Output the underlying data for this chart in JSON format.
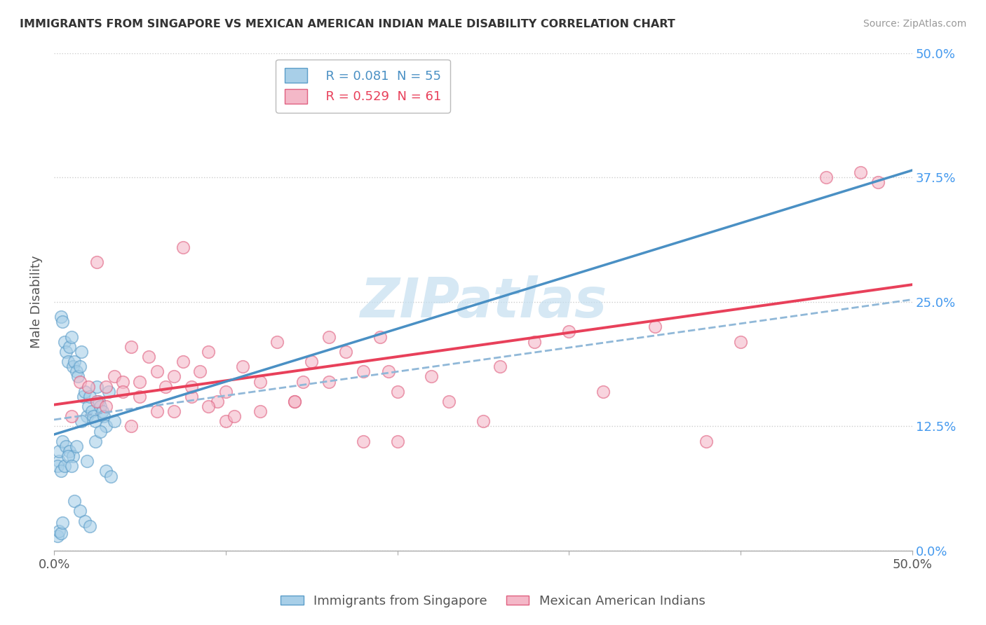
{
  "title": "IMMIGRANTS FROM SINGAPORE VS MEXICAN AMERICAN INDIAN MALE DISABILITY CORRELATION CHART",
  "source": "Source: ZipAtlas.com",
  "ylabel": "Male Disability",
  "yticks_labels": [
    "0.0%",
    "12.5%",
    "25.0%",
    "37.5%",
    "50.0%"
  ],
  "ytick_vals": [
    0.0,
    12.5,
    25.0,
    37.5,
    50.0
  ],
  "xlim": [
    0.0,
    50.0
  ],
  "ylim": [
    0.0,
    50.0
  ],
  "legend1_r": "R = 0.081",
  "legend1_n": "N = 55",
  "legend2_r": "R = 0.529",
  "legend2_n": "N = 61",
  "color_blue_fill": "#a8cfe8",
  "color_blue_edge": "#5b9dc9",
  "color_pink_fill": "#f4b8c8",
  "color_pink_edge": "#e06080",
  "color_blue_line": "#4a90c4",
  "color_pink_line": "#e8405a",
  "color_dashed": "#90b8d8",
  "watermark_color": "#c5dff0",
  "singapore_x": [
    0.3,
    0.4,
    0.5,
    0.6,
    0.7,
    0.8,
    0.9,
    1.0,
    1.1,
    1.2,
    1.3,
    1.4,
    1.5,
    1.6,
    1.7,
    1.8,
    1.9,
    2.0,
    2.1,
    2.2,
    2.3,
    2.4,
    2.5,
    2.6,
    2.7,
    2.8,
    2.9,
    3.0,
    3.2,
    3.5,
    0.3,
    0.5,
    0.7,
    0.9,
    1.1,
    1.3,
    1.6,
    1.9,
    0.2,
    0.4,
    0.6,
    0.8,
    1.0,
    1.2,
    1.5,
    1.8,
    2.1,
    2.4,
    2.7,
    3.0,
    3.3,
    0.2,
    0.3,
    0.4,
    0.5
  ],
  "singapore_y": [
    9.0,
    23.5,
    23.0,
    21.0,
    20.0,
    19.0,
    20.5,
    21.5,
    18.5,
    19.0,
    18.0,
    17.5,
    18.5,
    20.0,
    15.5,
    16.0,
    13.5,
    14.5,
    15.5,
    14.0,
    13.5,
    13.0,
    16.5,
    15.0,
    14.5,
    14.0,
    13.5,
    12.5,
    16.0,
    13.0,
    10.0,
    11.0,
    10.5,
    10.0,
    9.5,
    10.5,
    13.0,
    9.0,
    8.5,
    8.0,
    8.5,
    9.5,
    8.5,
    5.0,
    4.0,
    3.0,
    2.5,
    11.0,
    12.0,
    8.0,
    7.5,
    1.5,
    2.0,
    1.8,
    2.8
  ],
  "mexican_x": [
    1.0,
    1.5,
    2.0,
    2.5,
    3.0,
    3.5,
    4.0,
    4.5,
    5.0,
    5.5,
    6.0,
    6.5,
    7.0,
    7.5,
    8.0,
    8.5,
    9.0,
    9.5,
    10.0,
    11.0,
    12.0,
    13.0,
    14.0,
    15.0,
    16.0,
    17.0,
    18.0,
    19.0,
    20.0,
    22.0,
    3.0,
    4.0,
    5.0,
    6.0,
    7.0,
    8.0,
    9.0,
    10.0,
    12.0,
    14.0,
    16.0,
    18.0,
    20.0,
    23.0,
    26.0,
    28.0,
    30.0,
    35.0,
    40.0,
    45.0,
    48.0,
    2.5,
    4.5,
    7.5,
    10.5,
    14.5,
    19.5,
    25.0,
    32.0,
    38.0,
    47.0
  ],
  "mexican_y": [
    13.5,
    17.0,
    16.5,
    15.0,
    16.5,
    17.5,
    17.0,
    20.5,
    17.0,
    19.5,
    14.0,
    16.5,
    17.5,
    19.0,
    15.5,
    18.0,
    20.0,
    15.0,
    16.0,
    18.5,
    17.0,
    21.0,
    15.0,
    19.0,
    17.0,
    20.0,
    11.0,
    21.5,
    16.0,
    17.5,
    14.5,
    16.0,
    15.5,
    18.0,
    14.0,
    16.5,
    14.5,
    13.0,
    14.0,
    15.0,
    21.5,
    18.0,
    11.0,
    15.0,
    18.5,
    21.0,
    22.0,
    22.5,
    21.0,
    37.5,
    37.0,
    29.0,
    12.5,
    30.5,
    13.5,
    17.0,
    18.0,
    13.0,
    16.0,
    11.0,
    38.0
  ]
}
